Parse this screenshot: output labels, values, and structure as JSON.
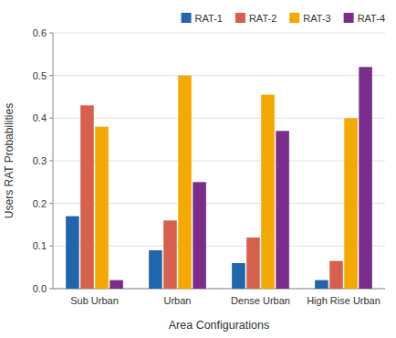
{
  "chart_data": {
    "type": "bar",
    "categories": [
      "Sub Urban",
      "Urban",
      "Dense Urban",
      "High Rise Urban"
    ],
    "series": [
      {
        "name": "RAT-1",
        "color": "#2166ac",
        "values": [
          0.17,
          0.09,
          0.06,
          0.02
        ]
      },
      {
        "name": "RAT-2",
        "color": "#d6604d",
        "values": [
          0.43,
          0.16,
          0.12,
          0.065
        ]
      },
      {
        "name": "RAT-3",
        "color": "#f4a900",
        "values": [
          0.38,
          0.5,
          0.455,
          0.4
        ]
      },
      {
        "name": "RAT-4",
        "color": "#7b2d8b",
        "values": [
          0.02,
          0.25,
          0.37,
          0.52
        ]
      }
    ],
    "xlabel": "Area Configurations",
    "ylabel": "Users RAT Probabilities",
    "ylim": [
      0,
      0.6
    ],
    "yticks": [
      {
        "value": 0,
        "label": "0.0"
      },
      0.1,
      0.2,
      0.3,
      0.4,
      0.5,
      0.6
    ],
    "grid": true,
    "legend": "upper right"
  }
}
